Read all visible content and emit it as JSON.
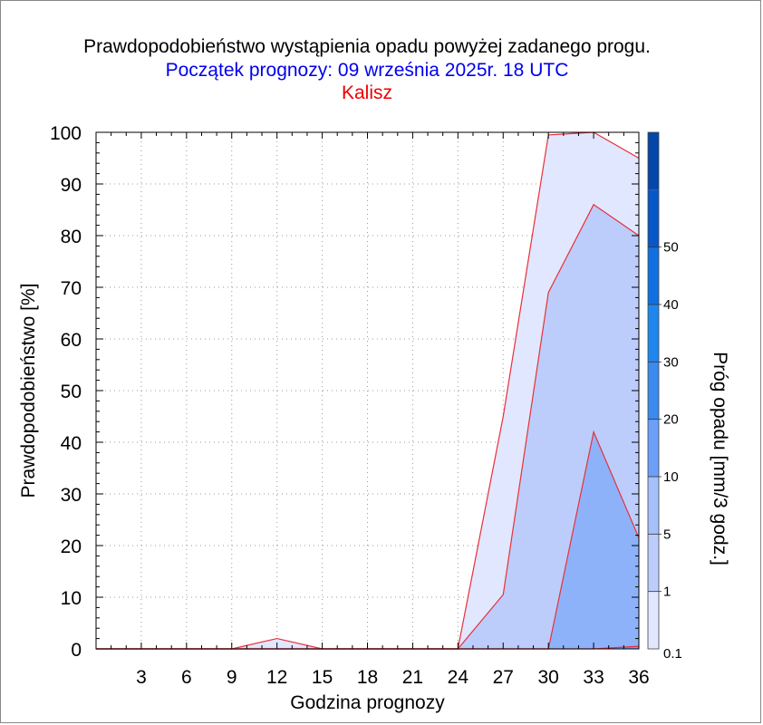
{
  "title": "Prawdopodobieństwo wystąpienia opadu powyżej zadanego progu.",
  "subtitle": "Początek prognozy: 09 września 2025r. 18 UTC",
  "location": "Kalisz",
  "colors": {
    "title": "#000000",
    "subtitle": "#0000ee",
    "location": "#ee0000",
    "outline": "#e8303a"
  },
  "chart_data": {
    "type": "area",
    "xlabel": "Godzina prognozy",
    "ylabel": "Prawdopodobieństwo [%]",
    "colorbar_label": "Próg opadu [mm/3 godz.]",
    "xlim": [
      0,
      36
    ],
    "ylim": [
      0,
      100
    ],
    "x_ticks": [
      3,
      6,
      9,
      12,
      15,
      18,
      21,
      24,
      27,
      30,
      33,
      36
    ],
    "y_ticks": [
      0,
      10,
      20,
      30,
      40,
      50,
      60,
      70,
      80,
      90,
      100
    ],
    "x": [
      0,
      3,
      6,
      9,
      12,
      15,
      18,
      21,
      24,
      27,
      30,
      33,
      36
    ],
    "series": [
      {
        "name": "0.1",
        "color": "#e1e7fe",
        "values": [
          0,
          0,
          0,
          0,
          2,
          0,
          0,
          0,
          0,
          45,
          99.5,
          100,
          95
        ]
      },
      {
        "name": "1",
        "color": "#bccdfb",
        "values": [
          0,
          0,
          0,
          0,
          0,
          0,
          0,
          0,
          0,
          10.5,
          69,
          86,
          80
        ]
      },
      {
        "name": "5",
        "color": "#8eb2fa",
        "values": [
          0,
          0,
          0,
          0,
          0,
          0,
          0,
          0,
          0,
          0,
          0,
          42,
          21.5
        ]
      },
      {
        "name": "10",
        "color": "#6c9ff7",
        "values": [
          0,
          0,
          0,
          0,
          0,
          0,
          0,
          0,
          0,
          0,
          0,
          0,
          0.5
        ]
      }
    ],
    "colorbar": {
      "labels": [
        "0.1",
        "1",
        "5",
        "10",
        "20",
        "30",
        "40",
        "50"
      ],
      "colors": [
        "#e1e7fe",
        "#bccdfb",
        "#a5c0fb",
        "#6c9ff7",
        "#3b8af0",
        "#1f86ee",
        "#1170e0",
        "#0857c8",
        "#0447a8"
      ]
    }
  }
}
